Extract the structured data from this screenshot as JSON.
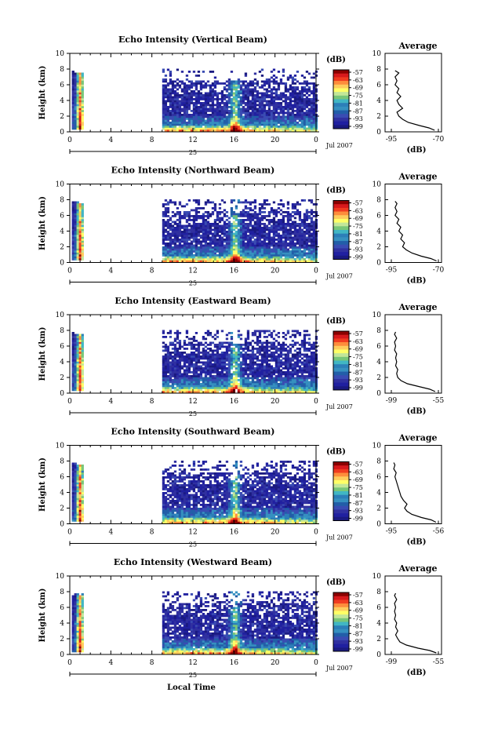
{
  "figure": {
    "xlabel": "Local Time"
  },
  "colorbar": {
    "unit": "(dB)",
    "ticks": [
      "-57",
      "-63",
      "-69",
      "-75",
      "-81",
      "-87",
      "-93",
      "-99"
    ],
    "colors": [
      "#8b0000",
      "#d7191c",
      "#f03b20",
      "#fd8d3c",
      "#fecc5c",
      "#ffff66",
      "#c2e699",
      "#78c679",
      "#41b6c4",
      "#2c7fb8",
      "#3690c0",
      "#225ea8",
      "#3a4cb3",
      "#3030a0",
      "#2020a0",
      "#1a1a80"
    ]
  },
  "chart_data": [
    {
      "type": "heatmap",
      "title": "Echo Intensity (Vertical Beam)",
      "ylabel": "Height (km)",
      "ylim": [
        0,
        10
      ],
      "yticks": [
        "0",
        "2",
        "4",
        "6",
        "8",
        "10"
      ],
      "xlim": [
        0,
        24
      ],
      "xticks": [
        "0",
        "4",
        "8",
        "12",
        "16",
        "20",
        "0"
      ],
      "date_day": "25",
      "date_month": "Jul 2007",
      "clim": [
        -99,
        -57
      ],
      "data_gaps_hours": [
        [
          1,
          9
        ]
      ],
      "profile": {
        "title": "Average",
        "xlabel": "(dB)",
        "xticks": [
          "-95",
          "-70"
        ],
        "xlim": [
          -95,
          -70
        ],
        "yticks": [
          "0",
          "2",
          "4",
          "6",
          "8",
          "10"
        ],
        "height_km": [
          0.2,
          0.5,
          0.8,
          1.2,
          1.6,
          2.0,
          2.5,
          3.0,
          3.5,
          4.0,
          4.5,
          5.0,
          5.5,
          6.0,
          6.5,
          7.0,
          7.5,
          7.8
        ],
        "value_db": [
          -72,
          -75,
          -80,
          -86,
          -89,
          -91,
          -92,
          -89,
          -91,
          -92,
          -90,
          -92,
          -91,
          -93,
          -92,
          -93,
          -91,
          -93
        ]
      }
    },
    {
      "type": "heatmap",
      "title": "Echo Intensity (Northward Beam)",
      "ylabel": "Height (km)",
      "ylim": [
        0,
        10
      ],
      "yticks": [
        "0",
        "2",
        "4",
        "6",
        "8",
        "10"
      ],
      "xlim": [
        0,
        24
      ],
      "xticks": [
        "0",
        "4",
        "8",
        "12",
        "16",
        "20",
        "0"
      ],
      "date_day": "25",
      "date_month": "Jul 2007",
      "clim": [
        -99,
        -57
      ],
      "data_gaps_hours": [
        [
          1,
          9
        ]
      ],
      "profile": {
        "title": "Average",
        "xlabel": "(dB)",
        "xticks": [
          "-95",
          "-70"
        ],
        "xlim": [
          -95,
          -70
        ],
        "yticks": [
          "0",
          "2",
          "4",
          "6",
          "8",
          "10"
        ],
        "height_km": [
          0.2,
          0.5,
          0.8,
          1.2,
          1.6,
          2.0,
          2.5,
          3.0,
          3.5,
          4.0,
          4.5,
          5.0,
          5.5,
          6.0,
          6.5,
          7.0,
          7.5,
          7.8
        ],
        "value_db": [
          -71,
          -74,
          -79,
          -84,
          -87,
          -89,
          -88,
          -90,
          -89,
          -91,
          -90,
          -92,
          -91,
          -93,
          -92,
          -93,
          -92,
          -93
        ]
      }
    },
    {
      "type": "heatmap",
      "title": "Echo Intensity (Eastward Beam)",
      "ylabel": "Height (km)",
      "ylim": [
        0,
        10
      ],
      "yticks": [
        "0",
        "2",
        "4",
        "6",
        "8",
        "10"
      ],
      "xlim": [
        0,
        24
      ],
      "xticks": [
        "0",
        "4",
        "8",
        "12",
        "16",
        "20",
        "0"
      ],
      "date_day": "25",
      "date_month": "Jul 2007",
      "clim": [
        -99,
        -57
      ],
      "data_gaps_hours": [
        [
          1,
          9
        ]
      ],
      "profile": {
        "title": "Average",
        "xlabel": "(dB)",
        "xticks": [
          "-99",
          "-55"
        ],
        "xlim": [
          -99,
          -55
        ],
        "yticks": [
          "0",
          "2",
          "4",
          "6",
          "8",
          "10"
        ],
        "height_km": [
          0.2,
          0.5,
          0.8,
          1.2,
          1.6,
          2.0,
          2.5,
          3.0,
          3.5,
          4.0,
          4.5,
          5.0,
          5.5,
          6.0,
          6.5,
          7.0,
          7.5,
          7.8
        ],
        "value_db": [
          -58,
          -63,
          -72,
          -84,
          -90,
          -93,
          -94,
          -93,
          -95,
          -94,
          -95,
          -94,
          -96,
          -95,
          -96,
          -94,
          -96,
          -95
        ]
      }
    },
    {
      "type": "heatmap",
      "title": "Echo Intensity (Southward Beam)",
      "ylabel": "Height (km)",
      "ylim": [
        0,
        10
      ],
      "yticks": [
        "0",
        "2",
        "4",
        "6",
        "8",
        "10"
      ],
      "xlim": [
        0,
        24
      ],
      "xticks": [
        "0",
        "4",
        "8",
        "12",
        "16",
        "20",
        "0"
      ],
      "date_day": "25",
      "date_month": "Jul 2007",
      "clim": [
        -99,
        -57
      ],
      "data_gaps_hours": [
        [
          1,
          9
        ]
      ],
      "profile": {
        "title": "Average",
        "xlabel": "(dB)",
        "xticks": [
          "-95",
          "-56"
        ],
        "xlim": [
          -95,
          -56
        ],
        "yticks": [
          "0",
          "2",
          "4",
          "6",
          "8",
          "10"
        ],
        "height_km": [
          0.2,
          0.5,
          0.8,
          1.2,
          1.6,
          2.0,
          2.5,
          3.0,
          3.5,
          4.0,
          4.5,
          5.0,
          5.5,
          6.0,
          6.5,
          7.0,
          7.5,
          7.8
        ],
        "value_db": [
          -58,
          -62,
          -70,
          -78,
          -82,
          -84,
          -82,
          -85,
          -87,
          -88,
          -89,
          -90,
          -91,
          -92,
          -91,
          -93,
          -92,
          -93
        ]
      }
    },
    {
      "type": "heatmap",
      "title": "Echo Intensity (Westward Beam)",
      "ylabel": "Height (km)",
      "ylim": [
        0,
        10
      ],
      "yticks": [
        "0",
        "2",
        "4",
        "6",
        "8",
        "10"
      ],
      "xlim": [
        0,
        24
      ],
      "xticks": [
        "0",
        "4",
        "8",
        "12",
        "16",
        "20",
        "0"
      ],
      "date_day": "25",
      "date_month": "Jul 2007",
      "clim": [
        -99,
        -57
      ],
      "data_gaps_hours": [
        [
          1,
          9
        ]
      ],
      "profile": {
        "title": "Average",
        "xlabel": "(dB)",
        "xticks": [
          "-99",
          "-55"
        ],
        "xlim": [
          -99,
          -55
        ],
        "yticks": [
          "0",
          "2",
          "4",
          "6",
          "8",
          "10"
        ],
        "height_km": [
          0.2,
          0.5,
          0.8,
          1.2,
          1.6,
          2.0,
          2.5,
          3.0,
          3.5,
          4.0,
          4.5,
          5.0,
          5.5,
          6.0,
          6.5,
          7.0,
          7.5,
          7.8
        ],
        "value_db": [
          -57,
          -63,
          -74,
          -85,
          -91,
          -93,
          -95,
          -93,
          -95,
          -94,
          -96,
          -95,
          -96,
          -95,
          -96,
          -94,
          -96,
          -95
        ]
      }
    }
  ]
}
